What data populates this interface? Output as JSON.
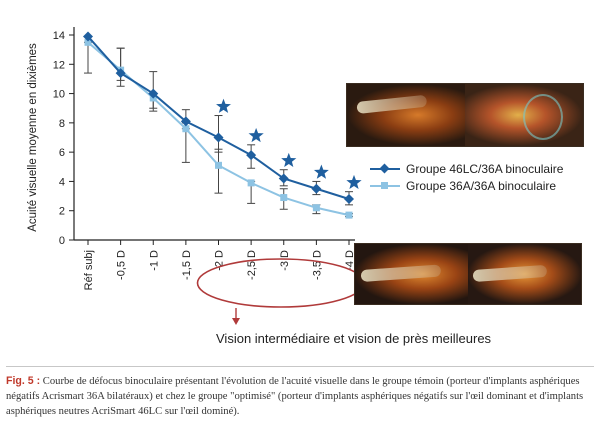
{
  "chart_data": {
    "type": "line",
    "ylabel": "Acuité visuelle moyenne en dixièmes",
    "ylim": [
      0,
      14
    ],
    "yticks": [
      0,
      2,
      4,
      6,
      8,
      10,
      12,
      14
    ],
    "categories": [
      "Réf subj",
      "-0,5 D",
      "-1 D",
      "-1,5 D",
      "-2 D",
      "-2,5 D",
      "-3 D",
      "-3,5 D",
      "-4 D"
    ],
    "series": [
      {
        "name": "Groupe 46LC/36A binoculaire",
        "color": "#1f5f9f",
        "marker": "diamond",
        "values": [
          13.9,
          11.4,
          10.0,
          8.1,
          7.0,
          5.8,
          4.2,
          3.5,
          2.8
        ],
        "error_low": [
          11.4,
          10.5,
          9.0,
          7.6,
          6.0,
          4.9,
          3.7,
          3.1,
          2.4
        ],
        "error_high": [
          13.9,
          13.1,
          11.5,
          8.9,
          8.5,
          6.5,
          4.8,
          4.0,
          3.3
        ]
      },
      {
        "name": "Groupe 36A/36A binoculaire",
        "color": "#8dc3e3",
        "marker": "square",
        "values": [
          13.5,
          11.6,
          9.7,
          7.6,
          5.1,
          3.9,
          2.9,
          2.2,
          1.7
        ],
        "error_low": [
          13.5,
          10.9,
          8.8,
          5.3,
          3.2,
          2.5,
          2.1,
          1.8,
          1.6
        ],
        "error_high": [
          13.9,
          13.1,
          10.0,
          8.0,
          6.2,
          4.0,
          3.5,
          2.4,
          1.8
        ]
      }
    ],
    "significance_stars": [
      "-2 D",
      "-2,5 D",
      "-3 D",
      "-3,5 D",
      "-4 D"
    ],
    "star_color": "#1f5f9f",
    "grid": false,
    "legend_position": "right"
  },
  "annotation": {
    "text": "Vision intermédiaire et vision de près meilleures",
    "ellipse_color": "#b03a3a"
  },
  "caption": {
    "fig_label": "Fig. 5 :",
    "text": "Courbe de défocus binoculaire présentant l'évolution de l'acuité visuelle dans le groupe témoin (porteur d'implants asphériques négatifs Acrismart 36A bilatéraux) et chez le groupe \"optimisé\" (porteur d'implants asphériques négatifs sur l'œil dominant et d'implants asphériques neutres AcriSmart 46LC sur l'œil dominé)."
  }
}
